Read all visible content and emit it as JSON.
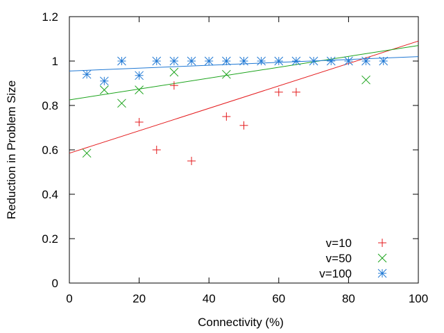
{
  "chart_data": {
    "type": "scatter",
    "xlabel": "Connectivity (%)",
    "ylabel": "Reduction in Problem Size",
    "xlim": [
      0,
      100
    ],
    "ylim": [
      0,
      1.2
    ],
    "xticks": [
      0,
      20,
      40,
      60,
      80,
      100
    ],
    "yticks": [
      0,
      0.2,
      0.4,
      0.6,
      0.8,
      1,
      1.2
    ],
    "xtick_labels": [
      "0",
      "20",
      "40",
      "60",
      "80",
      "100"
    ],
    "ytick_labels": [
      "0",
      "0.2",
      "0.4",
      "0.6",
      "0.8",
      "1",
      "1.2"
    ],
    "grid": false,
    "legend_position": "bottom-right",
    "series": [
      {
        "name": "v=10",
        "marker": "plus",
        "color": "#e41a1c",
        "x": [
          20,
          25,
          30,
          35,
          45,
          50,
          60,
          65
        ],
        "y": [
          0.725,
          0.6,
          0.89,
          0.55,
          0.75,
          0.71,
          0.86,
          0.86
        ],
        "fit": [
          [
            0,
            0.585
          ],
          [
            100,
            1.09
          ]
        ]
      },
      {
        "name": "v=50",
        "marker": "cross",
        "color": "#1aa31a",
        "x": [
          5,
          10,
          15,
          20,
          30,
          45,
          85
        ],
        "y": [
          0.585,
          0.87,
          0.81,
          0.87,
          0.95,
          0.94,
          0.915
        ],
        "fit": [
          [
            0,
            0.825
          ],
          [
            100,
            1.07
          ]
        ]
      },
      {
        "name": "v=100",
        "marker": "star",
        "color": "#1f78d4",
        "x": [
          5,
          10,
          15,
          20,
          25,
          30,
          35,
          40,
          45,
          50,
          55,
          60,
          65,
          70,
          75,
          80,
          85,
          90
        ],
        "y": [
          0.94,
          0.91,
          1.0,
          0.935,
          1.0,
          1.0,
          1.0,
          1.0,
          1.0,
          1.0,
          1.0,
          1.0,
          1.0,
          1.0,
          1.0,
          1.0,
          1.0,
          1.0
        ],
        "fit": [
          [
            0,
            0.955
          ],
          [
            100,
            1.02
          ]
        ]
      }
    ]
  }
}
